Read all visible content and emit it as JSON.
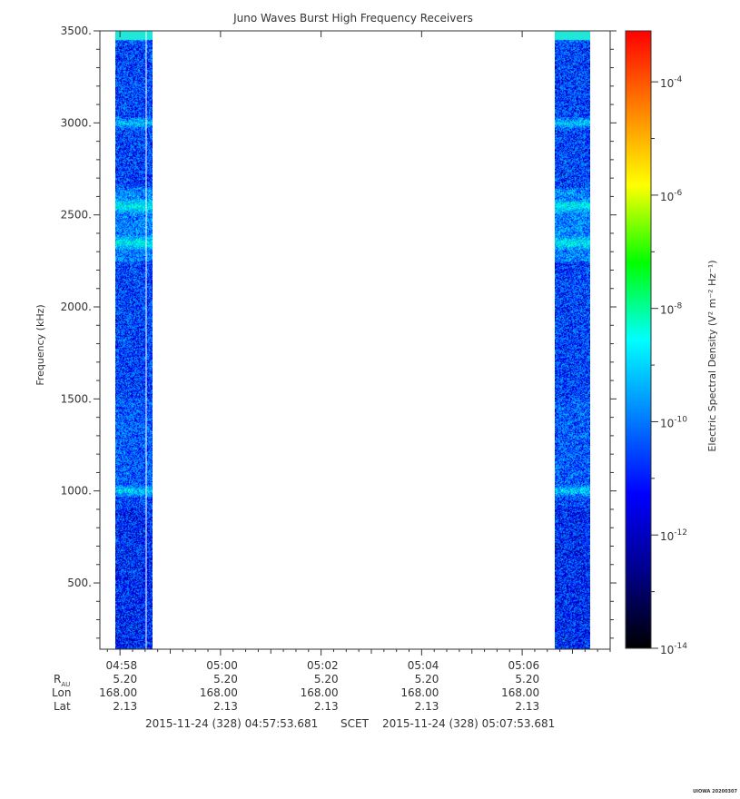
{
  "chart_data": {
    "type": "heatmap",
    "title": "Juno Waves Burst High Frequency Receivers",
    "ylabel": "Frequency (kHz)",
    "ylim": [
      140,
      3500
    ],
    "y_ticks": [
      {
        "value": 500,
        "label": "500."
      },
      {
        "value": 1000,
        "label": "1000."
      },
      {
        "value": 1500,
        "label": "1500."
      },
      {
        "value": 2000,
        "label": "2000."
      },
      {
        "value": 2500,
        "label": "2500."
      },
      {
        "value": 3000,
        "label": "3000."
      },
      {
        "value": 3500,
        "label": "3500."
      }
    ],
    "xlim_minutes": [
      297.6,
      307.75
    ],
    "x_ticks": [
      {
        "minute": 298,
        "label": "04:58",
        "rau": "5.20",
        "lon": "168.00",
        "lat": "2.13"
      },
      {
        "minute": 300,
        "label": "05:00",
        "rau": "5.20",
        "lon": "168.00",
        "lat": "2.13"
      },
      {
        "minute": 302,
        "label": "05:02",
        "rau": "5.20",
        "lon": "168.00",
        "lat": "2.13"
      },
      {
        "minute": 304,
        "label": "05:04",
        "rau": "5.20",
        "lon": "168.00",
        "lat": "2.13"
      },
      {
        "minute": 306,
        "label": "05:06",
        "rau": "5.20",
        "lon": "168.00",
        "lat": "2.13"
      }
    ],
    "data_segments": [
      {
        "start_minute": 297.9,
        "end_minute": 298.65
      },
      {
        "start_minute": 306.65,
        "end_minute": 307.35
      }
    ],
    "enhanced_bands_khz": [
      1000,
      2350,
      2550,
      3000,
      3480
    ],
    "colorbar": {
      "label": "Electric Spectral Density (V² m⁻² Hz⁻¹)",
      "scale": "log",
      "range_exp": [
        -14,
        -3.1
      ],
      "ticks": [
        {
          "exp": -14,
          "label": "10",
          "sup": "-14"
        },
        {
          "exp": -12,
          "label": "10",
          "sup": "-12"
        },
        {
          "exp": -10,
          "label": "10",
          "sup": "-10"
        },
        {
          "exp": -8,
          "label": "10",
          "sup": "-8"
        },
        {
          "exp": -6,
          "label": "10",
          "sup": "-6"
        },
        {
          "exp": -4,
          "label": "10",
          "sup": "-4"
        }
      ],
      "colors": [
        "#000000",
        "#00008b",
        "#0000ff",
        "#0080ff",
        "#00ffff",
        "#00ff00",
        "#ffff00",
        "#ff8000",
        "#ff0000"
      ]
    },
    "row_labels": {
      "rau_main": "R",
      "rau_sub": "AU",
      "lon": "Lon",
      "lat": "Lat"
    },
    "time_range": {
      "start": "2015-11-24 (328) 04:57:53.681",
      "mid": "SCET",
      "end": "2015-11-24 (328) 05:07:53.681"
    },
    "footer": "UIOWA 20200307"
  }
}
